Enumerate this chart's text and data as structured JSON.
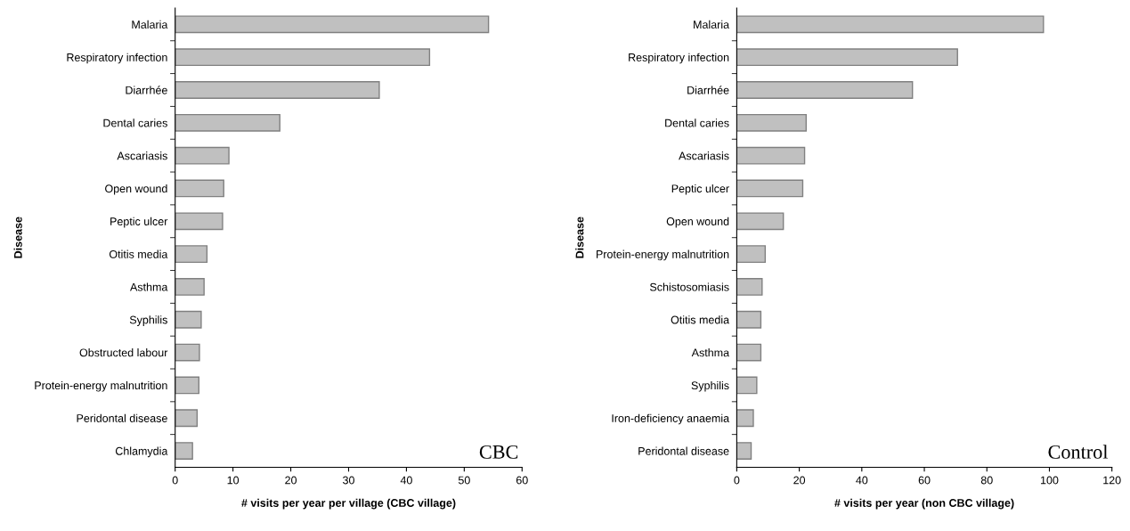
{
  "chart_data": [
    {
      "type": "bar",
      "orientation": "horizontal",
      "xlabel": "# visits per year per village (CBC village)",
      "ylabel": "Disease",
      "annotations": [
        "CBC"
      ],
      "categories": [
        "Malaria",
        "Respiratory infection",
        "Diarrhée",
        "Dental caries",
        "Ascariasis",
        "Open wound",
        "Peptic ulcer",
        "Otitis media",
        "Asthma",
        "Syphilis",
        "Obstructed labour",
        "Protein-energy malnutrition",
        "Peridontal disease",
        "Chlamydia"
      ],
      "values": [
        54.2,
        44.0,
        35.3,
        18.1,
        9.3,
        8.4,
        8.2,
        5.5,
        5.0,
        4.5,
        4.2,
        4.1,
        3.8,
        3.0
      ],
      "color": "#c0c0c0",
      "xlim": [
        0,
        60
      ],
      "xticks": [
        0,
        10,
        20,
        30,
        40,
        50,
        60
      ],
      "grid": false,
      "legend": false
    },
    {
      "type": "bar",
      "orientation": "horizontal",
      "xlabel": "# visits per year (non CBC village)",
      "ylabel": "Disease",
      "annotations": [
        "Control"
      ],
      "categories": [
        "Malaria",
        "Respiratory infection",
        "Diarrhée",
        "Dental caries",
        "Ascariasis",
        "Peptic ulcer",
        "Open wound",
        "Protein-energy malnutrition",
        "Schistosomiasis",
        "Otitis media",
        "Asthma",
        "Syphilis",
        "Iron-deficiency anaemia",
        "Peridontal disease"
      ],
      "values": [
        98.1,
        70.6,
        56.2,
        22.2,
        21.7,
        21.1,
        14.9,
        9.1,
        8.1,
        7.7,
        7.7,
        6.4,
        5.3,
        4.6
      ],
      "color": "#c0c0c0",
      "xlim": [
        0,
        120
      ],
      "xticks": [
        0,
        20,
        40,
        60,
        80,
        100,
        120
      ],
      "grid": false,
      "legend": false
    }
  ]
}
